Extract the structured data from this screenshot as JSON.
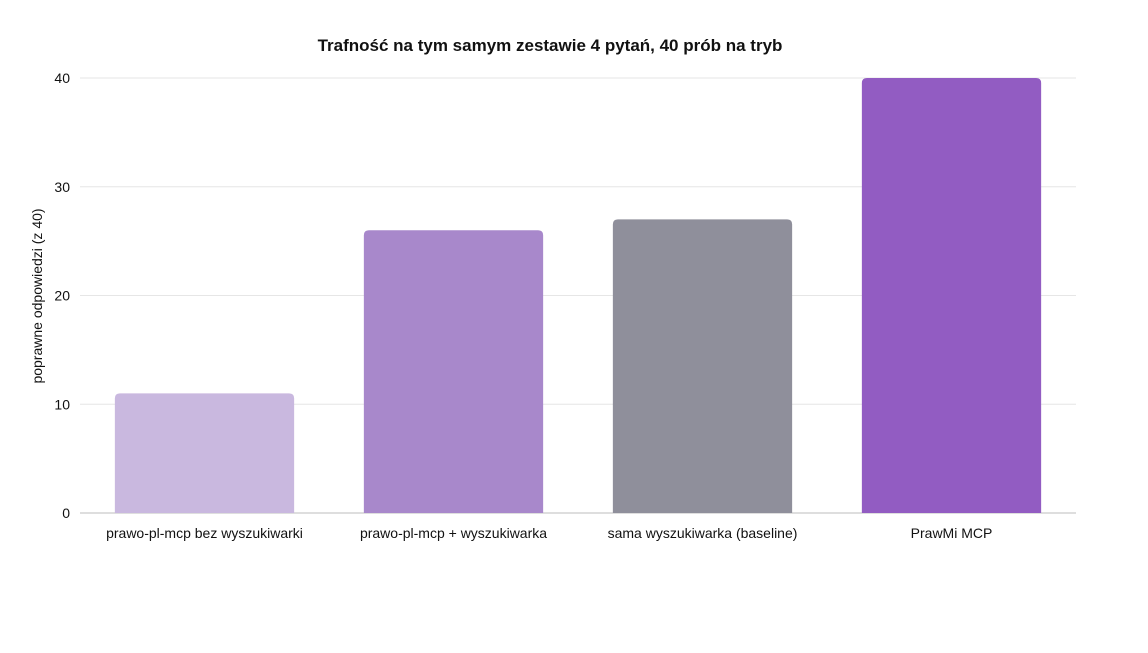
{
  "chart_data": {
    "type": "bar",
    "title": "Trafność na tym samym zestawie 4 pytań, 40 prób na tryb",
    "xlabel": "",
    "ylabel": "poprawne odpowiedzi (z 40)",
    "categories": [
      "prawo-pl-mcp bez wyszukiwarki",
      "prawo-pl-mcp + wyszukiwarka",
      "sama wyszukiwarka (baseline)",
      "PrawMi MCP"
    ],
    "values": [
      11,
      26,
      27,
      40
    ],
    "colors": [
      "#c9b8df",
      "#a888cb",
      "#8f8f9b",
      "#925cc2"
    ],
    "ylim": [
      0,
      40
    ],
    "yticks": [
      0,
      10,
      20,
      30,
      40
    ],
    "grid": true,
    "legend": "none"
  }
}
